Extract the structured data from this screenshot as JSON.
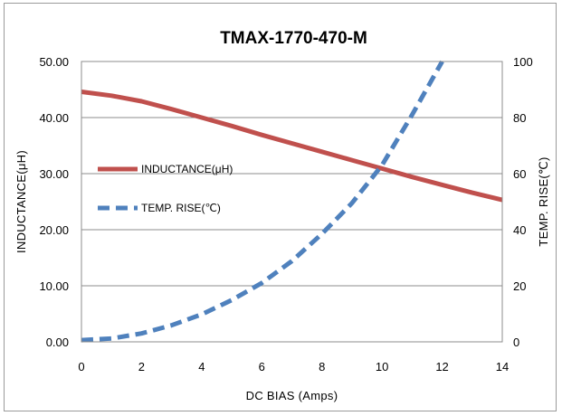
{
  "chart_data": {
    "type": "line",
    "title": "TMAX-1770-470-M",
    "xlabel": "DC BIAS  (Amps)",
    "ylabel_left": "INDUCTANCE(μH)",
    "ylabel_right": "TEMP. RISE(℃)",
    "xlim": [
      0,
      14
    ],
    "ylim_left": [
      0,
      50
    ],
    "ylim_right": [
      0,
      100
    ],
    "x_ticks": [
      "0",
      "2",
      "4",
      "6",
      "8",
      "10",
      "12",
      "14"
    ],
    "y_ticks_left": [
      "0.00",
      "10.00",
      "20.00",
      "30.00",
      "40.00",
      "50.00"
    ],
    "y_ticks_right": [
      "0",
      "20",
      "40",
      "60",
      "80",
      "100"
    ],
    "grid": "horizontal",
    "legend_position": "center-left",
    "series": [
      {
        "name": "INDUCTANCE(μH)",
        "axis": "left",
        "color": "#c0504d",
        "style": "solid",
        "x": [
          0,
          1,
          2,
          3,
          4,
          5,
          6,
          7,
          8,
          9,
          10,
          11,
          12,
          13,
          14
        ],
        "y": [
          44.6,
          43.9,
          42.9,
          41.5,
          40.0,
          38.5,
          36.9,
          35.4,
          33.9,
          32.4,
          30.9,
          29.4,
          28.0,
          26.6,
          25.3
        ]
      },
      {
        "name": "TEMP. RISE(℃)",
        "axis": "right",
        "color": "#4f81bd",
        "style": "dashed",
        "x": [
          0,
          1,
          2,
          3,
          4,
          5,
          6,
          7,
          8,
          9,
          10,
          11,
          12
        ],
        "y": [
          0.6,
          1.2,
          3.0,
          5.9,
          9.8,
          14.9,
          21.0,
          28.8,
          38.5,
          49.5,
          63.0,
          81.0,
          100.0
        ]
      }
    ]
  }
}
